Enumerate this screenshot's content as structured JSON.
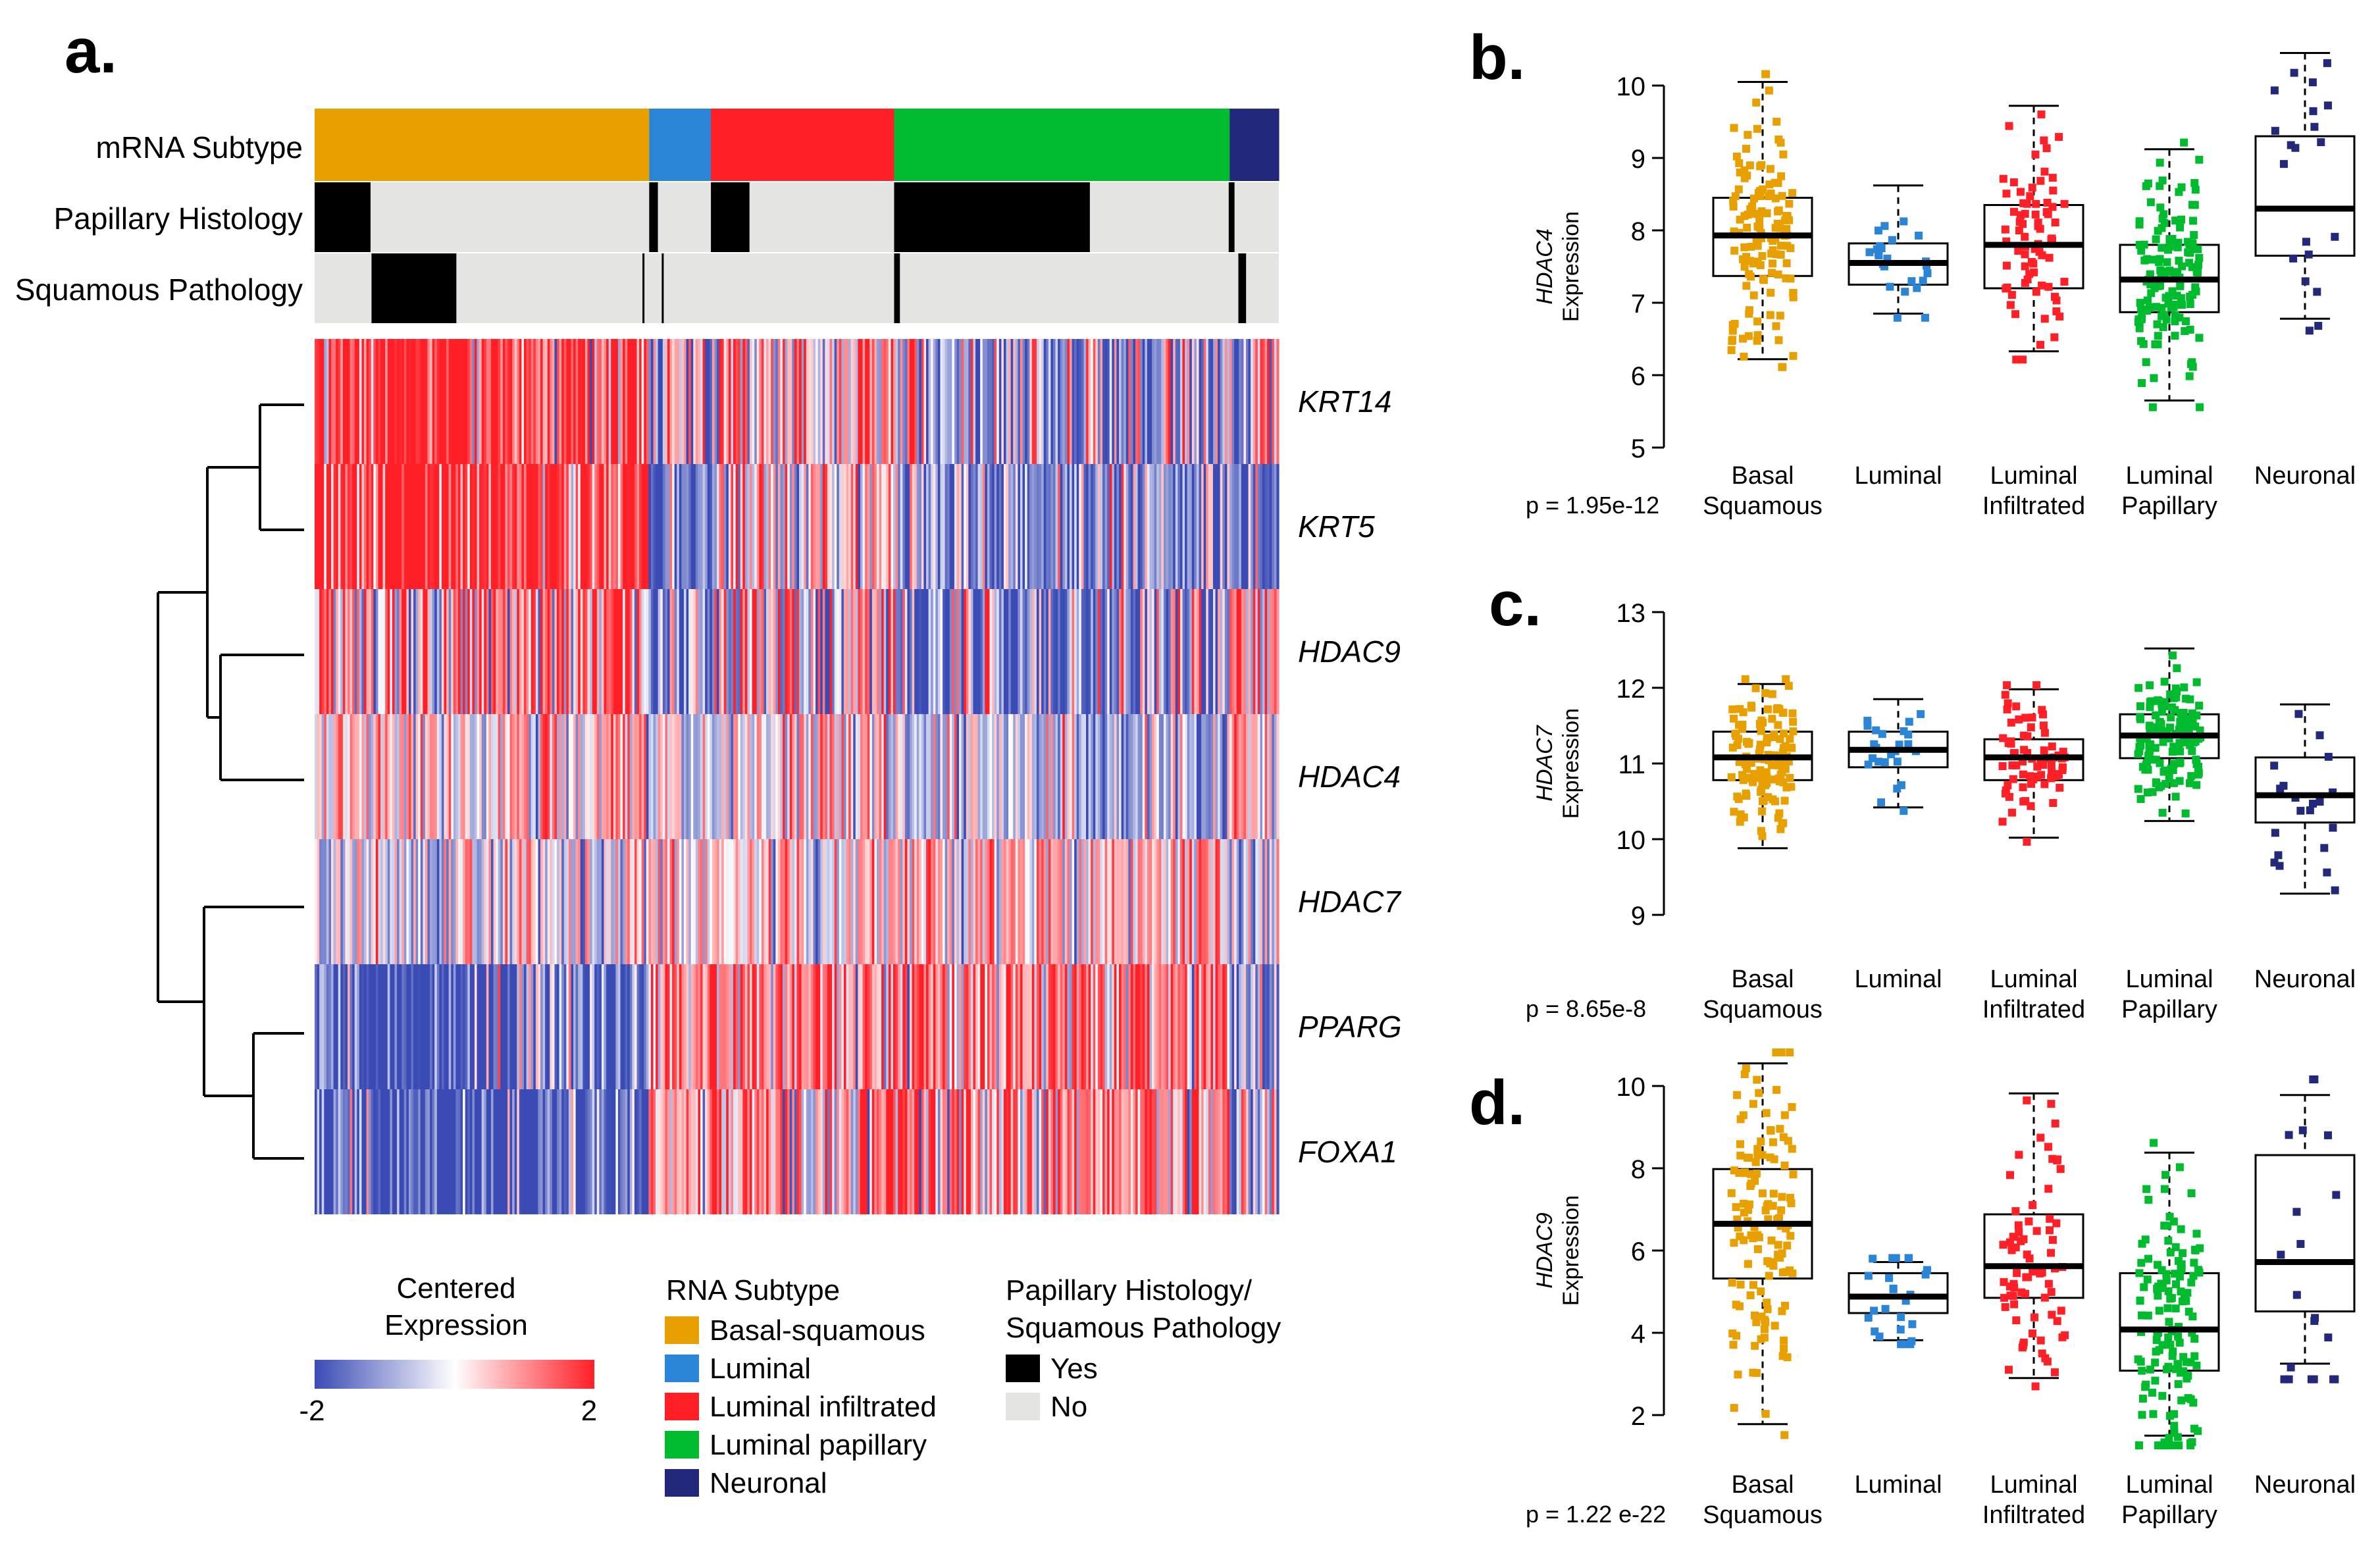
{
  "panel_labels": {
    "a": "a.",
    "b": "b.",
    "c": "c.",
    "d": "d."
  },
  "colors": {
    "basal_squamous": "#E8A000",
    "luminal": "#2B85D6",
    "luminal_infiltrated": "#FF1F27",
    "luminal_papillary": "#00BB2E",
    "neuronal": "#22287A",
    "yes": "#000000",
    "no": "#E4E4E2",
    "low": "#3A4BB5",
    "mid": "#FFFFFF",
    "high": "#FF1F27"
  },
  "heatmap": {
    "annotation_labels": [
      "mRNA Subtype",
      "Papillary Histology",
      "Squamous Pathology"
    ],
    "subtype_blocks": [
      {
        "subtype": "basal_squamous",
        "fraction": 0.347
      },
      {
        "subtype": "luminal",
        "fraction": 0.064
      },
      {
        "subtype": "luminal_infiltrated",
        "fraction": 0.19
      },
      {
        "subtype": "luminal_papillary",
        "fraction": 0.348
      },
      {
        "subtype": "neuronal",
        "fraction": 0.051
      }
    ],
    "papillary_yes_segments": [
      [
        0.0,
        0.058
      ],
      [
        0.347,
        0.356
      ],
      [
        0.411,
        0.451
      ],
      [
        0.601,
        0.804
      ],
      [
        0.948,
        0.954
      ]
    ],
    "squamous_yes_segments": [
      [
        0.059,
        0.147
      ],
      [
        0.34,
        0.342
      ],
      [
        0.36,
        0.362
      ],
      [
        0.601,
        0.607
      ],
      [
        0.958,
        0.966
      ]
    ],
    "genes": [
      "KRT14",
      "KRT5",
      "HDAC9",
      "HDAC4",
      "HDAC7",
      "PPARG",
      "FOXA1"
    ],
    "color_scale": {
      "title_line1": "Centered",
      "title_line2": "Expression",
      "min_label": "-2",
      "max_label": "2"
    },
    "legend_subtype": {
      "title": "RNA Subtype",
      "items": [
        {
          "label": "Basal-squamous",
          "color": "#E8A000"
        },
        {
          "label": "Luminal",
          "color": "#2B85D6"
        },
        {
          "label": "Luminal infiltrated",
          "color": "#FF1F27"
        },
        {
          "label": "Luminal papillary",
          "color": "#00BB2E"
        },
        {
          "label": "Neuronal",
          "color": "#22287A"
        }
      ]
    },
    "legend_histology": {
      "title_line1": "Papillary Histology/",
      "title_line2": "Squamous Pathology",
      "items": [
        {
          "label": "Yes",
          "color": "#000000"
        },
        {
          "label": "No",
          "color": "#E4E4E2"
        }
      ]
    }
  },
  "chart_data": [
    {
      "panel": "b",
      "type": "box",
      "ylabel_gene": "HDAC4",
      "ylabel_rest": "Expression",
      "ylim": [
        5,
        10.5
      ],
      "yticks": [
        5,
        6,
        7,
        8,
        9,
        10
      ],
      "categories": [
        [
          "Basal",
          "Squamous"
        ],
        [
          "Luminal"
        ],
        [
          "Luminal",
          "Infiltrated"
        ],
        [
          "Luminal",
          "Papillary"
        ],
        [
          "Neuronal"
        ]
      ],
      "pvalue": "p = 1.95e-12",
      "boxes": [
        {
          "q1": 7.37,
          "median": 7.93,
          "q3": 8.45,
          "whisker_low": 6.22,
          "whisker_high": 10.05,
          "n": 130,
          "color": "#E8A000"
        },
        {
          "q1": 7.25,
          "median": 7.55,
          "q3": 7.82,
          "whisker_low": 6.85,
          "whisker_high": 8.62,
          "n": 25,
          "color": "#2B85D6"
        },
        {
          "q1": 7.2,
          "median": 7.8,
          "q3": 8.35,
          "whisker_low": 6.33,
          "whisker_high": 9.72,
          "n": 75,
          "color": "#FF1F27"
        },
        {
          "q1": 6.87,
          "median": 7.32,
          "q3": 7.8,
          "whisker_low": 5.65,
          "whisker_high": 9.12,
          "n": 140,
          "color": "#00BB2E"
        },
        {
          "q1": 7.65,
          "median": 8.3,
          "q3": 9.3,
          "whisker_low": 6.78,
          "whisker_high": 10.45,
          "n": 20,
          "color": "#22287A"
        }
      ]
    },
    {
      "panel": "c",
      "type": "box",
      "ylabel_gene": "HDAC7",
      "ylabel_rest": "Expression",
      "ylim": [
        8.6,
        13.4
      ],
      "yticks": [
        9,
        10,
        11,
        12,
        13
      ],
      "categories": [
        [
          "Basal",
          "Squamous"
        ],
        [
          "Luminal"
        ],
        [
          "Luminal",
          "Infiltrated"
        ],
        [
          "Luminal",
          "Papillary"
        ],
        [
          "Neuronal"
        ]
      ],
      "pvalue": "p = 8.65e-8",
      "boxes": [
        {
          "q1": 10.78,
          "median": 11.08,
          "q3": 11.42,
          "whisker_low": 9.88,
          "whisker_high": 12.05,
          "n": 130,
          "color": "#E8A000"
        },
        {
          "q1": 10.95,
          "median": 11.18,
          "q3": 11.42,
          "whisker_low": 10.42,
          "whisker_high": 11.85,
          "n": 25,
          "color": "#2B85D6"
        },
        {
          "q1": 10.78,
          "median": 11.08,
          "q3": 11.32,
          "whisker_low": 10.02,
          "whisker_high": 11.98,
          "n": 75,
          "color": "#FF1F27"
        },
        {
          "q1": 11.07,
          "median": 11.37,
          "q3": 11.65,
          "whisker_low": 10.24,
          "whisker_high": 12.52,
          "n": 140,
          "color": "#00BB2E"
        },
        {
          "q1": 10.22,
          "median": 10.58,
          "q3": 11.08,
          "whisker_low": 9.28,
          "whisker_high": 11.78,
          "n": 20,
          "color": "#22287A"
        }
      ]
    },
    {
      "panel": "d",
      "type": "box",
      "ylabel_gene": "HDAC9",
      "ylabel_rest": "Expression",
      "ylim": [
        1.5,
        10.6
      ],
      "yticks": [
        2,
        4,
        6,
        8,
        10
      ],
      "categories": [
        [
          "Basal",
          "Squamous"
        ],
        [
          "Luminal"
        ],
        [
          "Luminal",
          "Infiltrated"
        ],
        [
          "Luminal",
          "Papillary"
        ],
        [
          "Neuronal"
        ]
      ],
      "pvalue": "p = 1.22 e-22",
      "boxes": [
        {
          "q1": 5.32,
          "median": 6.65,
          "q3": 7.98,
          "whisker_low": 1.78,
          "whisker_high": 10.55,
          "n": 130,
          "color": "#E8A000"
        },
        {
          "q1": 4.48,
          "median": 4.88,
          "q3": 5.45,
          "whisker_low": 3.82,
          "whisker_high": 5.72,
          "n": 25,
          "color": "#2B85D6"
        },
        {
          "q1": 4.85,
          "median": 5.62,
          "q3": 6.88,
          "whisker_low": 2.9,
          "whisker_high": 9.82,
          "n": 75,
          "color": "#FF1F27"
        },
        {
          "q1": 3.08,
          "median": 4.08,
          "q3": 5.45,
          "whisker_low": 1.5,
          "whisker_high": 8.38,
          "n": 140,
          "color": "#00BB2E"
        },
        {
          "q1": 4.52,
          "median": 5.72,
          "q3": 8.32,
          "whisker_low": 3.25,
          "whisker_high": 9.78,
          "n": 20,
          "color": "#22287A"
        }
      ]
    }
  ]
}
